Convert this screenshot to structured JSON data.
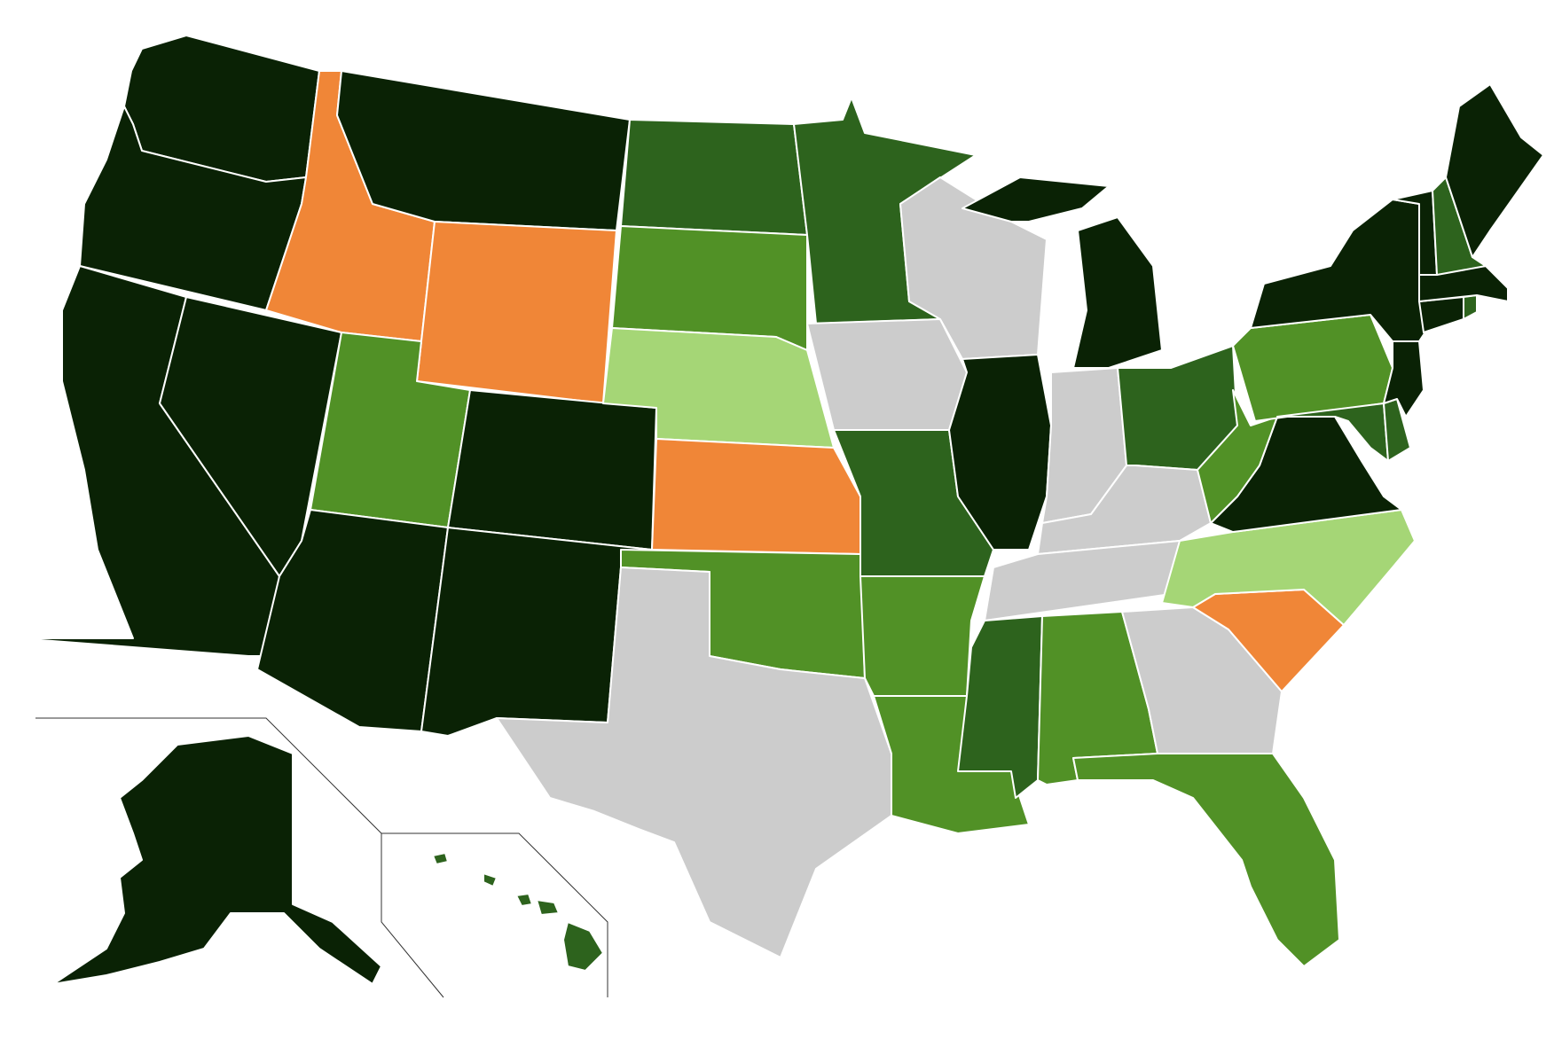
{
  "map": {
    "colors": {
      "darkest": "#0a2205",
      "dark": "#2d631d",
      "medium": "#519126",
      "light": "#a5d676",
      "orange": "#f08637",
      "gray": "#cccccc"
    },
    "states": [
      {
        "code": "WA",
        "category": "darkest"
      },
      {
        "code": "OR",
        "category": "darkest"
      },
      {
        "code": "CA",
        "category": "darkest"
      },
      {
        "code": "NV",
        "category": "darkest"
      },
      {
        "code": "ID",
        "category": "orange"
      },
      {
        "code": "MT",
        "category": "darkest"
      },
      {
        "code": "WY",
        "category": "orange"
      },
      {
        "code": "UT",
        "category": "medium"
      },
      {
        "code": "AZ",
        "category": "darkest"
      },
      {
        "code": "CO",
        "category": "darkest"
      },
      {
        "code": "NM",
        "category": "darkest"
      },
      {
        "code": "ND",
        "category": "dark"
      },
      {
        "code": "SD",
        "category": "medium"
      },
      {
        "code": "NE",
        "category": "light"
      },
      {
        "code": "KS",
        "category": "orange"
      },
      {
        "code": "OK",
        "category": "medium"
      },
      {
        "code": "TX",
        "category": "gray"
      },
      {
        "code": "MN",
        "category": "dark"
      },
      {
        "code": "IA",
        "category": "gray"
      },
      {
        "code": "MO",
        "category": "dark"
      },
      {
        "code": "AR",
        "category": "medium"
      },
      {
        "code": "LA",
        "category": "medium"
      },
      {
        "code": "WI",
        "category": "gray"
      },
      {
        "code": "IL",
        "category": "darkest"
      },
      {
        "code": "MI",
        "category": "darkest"
      },
      {
        "code": "IN",
        "category": "gray"
      },
      {
        "code": "OH",
        "category": "dark"
      },
      {
        "code": "KY",
        "category": "gray"
      },
      {
        "code": "TN",
        "category": "gray"
      },
      {
        "code": "MS",
        "category": "dark"
      },
      {
        "code": "AL",
        "category": "medium"
      },
      {
        "code": "GA",
        "category": "gray"
      },
      {
        "code": "FL",
        "category": "medium"
      },
      {
        "code": "SC",
        "category": "orange"
      },
      {
        "code": "NC",
        "category": "light"
      },
      {
        "code": "VA",
        "category": "darkest"
      },
      {
        "code": "WV",
        "category": "medium"
      },
      {
        "code": "PA",
        "category": "medium"
      },
      {
        "code": "MD",
        "category": "dark"
      },
      {
        "code": "DE",
        "category": "dark"
      },
      {
        "code": "NJ",
        "category": "darkest"
      },
      {
        "code": "NY",
        "category": "darkest"
      },
      {
        "code": "CT",
        "category": "darkest"
      },
      {
        "code": "RI",
        "category": "dark"
      },
      {
        "code": "MA",
        "category": "darkest"
      },
      {
        "code": "VT",
        "category": "darkest"
      },
      {
        "code": "NH",
        "category": "dark"
      },
      {
        "code": "ME",
        "category": "darkest"
      },
      {
        "code": "AK",
        "category": "darkest"
      },
      {
        "code": "HI",
        "category": "dark"
      }
    ]
  }
}
